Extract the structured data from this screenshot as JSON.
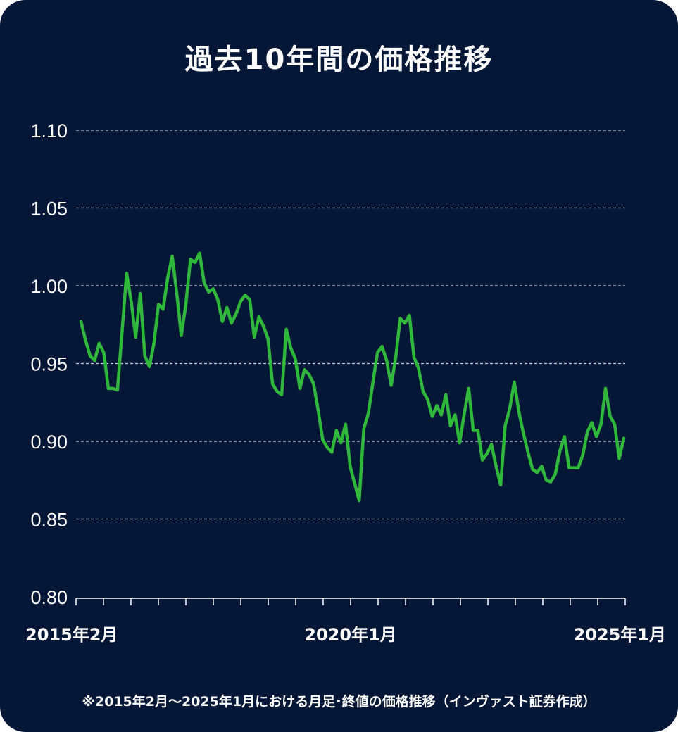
{
  "colors": {
    "background": "#051737",
    "line": "#2fb83a",
    "grid": "#c8ccd6",
    "text": "#ffffff"
  },
  "chart_data": {
    "type": "line",
    "title": "過去10年間の価格推移",
    "footnote": "※2015年2月〜2025年1月における月足･終値の価格推移（インヴァスト証券作成）",
    "ylim": [
      0.8,
      1.1
    ],
    "yticks": [
      "1.10",
      "1.05",
      "1.00",
      "0.95",
      "0.90",
      "0.85",
      "0.80"
    ],
    "grid": true,
    "xtick_labels": [
      "2015年2月",
      "2020年1月",
      "2025年1月"
    ],
    "x_start": "2015-02",
    "x_end": "2025-01",
    "series": [
      {
        "values": [
          0.977,
          0.965,
          0.955,
          0.952,
          0.963,
          0.957,
          0.934,
          0.934,
          0.933,
          0.97,
          1.008,
          0.99,
          0.967,
          0.995,
          0.955,
          0.948,
          0.963,
          0.988,
          0.985,
          1.005,
          1.019,
          0.995,
          0.968,
          0.988,
          1.017,
          1.015,
          1.021,
          1.002,
          0.996,
          0.998,
          0.991,
          0.977,
          0.986,
          0.976,
          0.982,
          0.99,
          0.994,
          0.991,
          0.967,
          0.98,
          0.974,
          0.966,
          0.937,
          0.932,
          0.93,
          0.972,
          0.96,
          0.953,
          0.934,
          0.946,
          0.943,
          0.937,
          0.92,
          0.901,
          0.896,
          0.893,
          0.907,
          0.899,
          0.911,
          0.884,
          0.873,
          0.862,
          0.908,
          0.918,
          0.938,
          0.957,
          0.961,
          0.952,
          0.936,
          0.954,
          0.979,
          0.976,
          0.981,
          0.954,
          0.947,
          0.932,
          0.927,
          0.916,
          0.923,
          0.917,
          0.93,
          0.91,
          0.917,
          0.899,
          0.917,
          0.934,
          0.907,
          0.907,
          0.888,
          0.892,
          0.898,
          0.884,
          0.872,
          0.91,
          0.921,
          0.938,
          0.919,
          0.905,
          0.893,
          0.882,
          0.88,
          0.884,
          0.875,
          0.874,
          0.879,
          0.894,
          0.903,
          0.883,
          0.883,
          0.883,
          0.891,
          0.906,
          0.912,
          0.903,
          0.911,
          0.934,
          0.916,
          0.911,
          0.889,
          0.902
        ]
      }
    ]
  }
}
